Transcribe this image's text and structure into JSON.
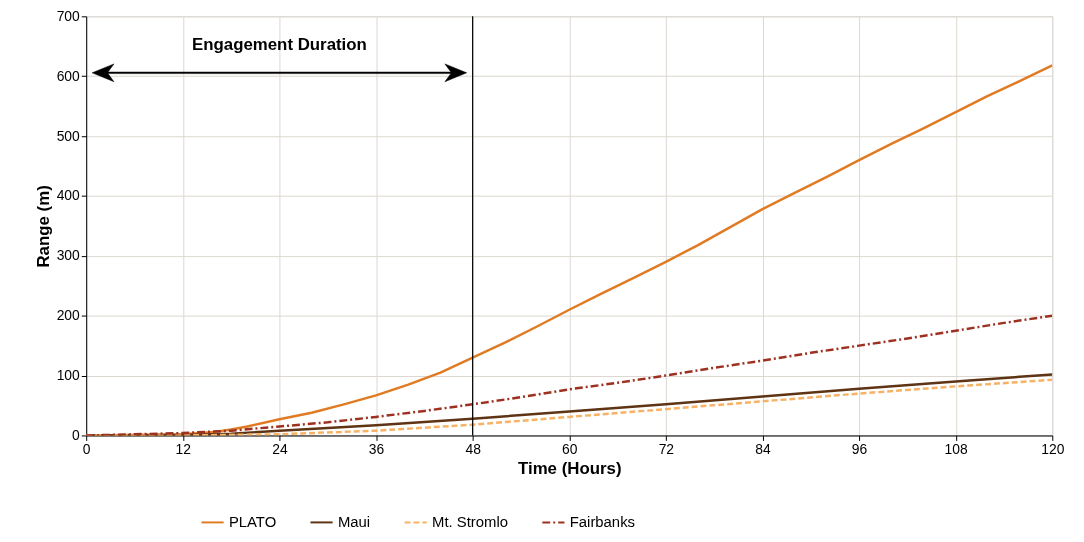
{
  "chart_data": {
    "type": "line",
    "xlabel": "Time (Hours)",
    "ylabel": "Range (m)",
    "xlim": [
      0,
      120
    ],
    "xticks": [
      0,
      12,
      24,
      36,
      48,
      60,
      72,
      84,
      96,
      108,
      120
    ],
    "ylim": [
      0,
      700
    ],
    "yticks": [
      0,
      100,
      200,
      300,
      400,
      500,
      600,
      700
    ],
    "grid": true,
    "legend": "bottom",
    "series": [
      {
        "name": "PLATO",
        "color": "#e07b24",
        "line_style": "solid",
        "x": [
          0,
          12,
          16,
          18,
          20,
          24,
          28,
          32,
          36,
          40,
          44,
          48,
          52,
          56,
          60,
          64,
          68,
          72,
          76,
          80,
          84,
          88,
          92,
          96,
          100,
          104,
          108,
          112,
          116,
          120
        ],
        "values": [
          0,
          2,
          6,
          10,
          15,
          27,
          38,
          52,
          67,
          85,
          105,
          130,
          155,
          182,
          210,
          237,
          263,
          290,
          318,
          348,
          378,
          405,
          432,
          460,
          487,
          513,
          540,
          567,
          592,
          618
        ]
      },
      {
        "name": "Maui",
        "color": "#5e3415",
        "line_style": "solid",
        "x": [
          0,
          12,
          18,
          24,
          36,
          48,
          60,
          72,
          84,
          96,
          108,
          120
        ],
        "values": [
          0,
          1,
          3,
          8,
          17,
          28,
          40,
          52,
          65,
          78,
          90,
          102
        ]
      },
      {
        "name": "Mt. Stromlo",
        "color": "#f7b266",
        "line_style": "dashed",
        "x": [
          0,
          12,
          24,
          36,
          48,
          60,
          72,
          84,
          96,
          108,
          120
        ],
        "values": [
          0,
          0,
          2,
          8,
          18,
          31,
          44,
          57,
          70,
          82,
          93
        ]
      },
      {
        "name": "Fairbanks",
        "color": "#9e3020",
        "line_style": "dashdot",
        "x": [
          0,
          12,
          18,
          24,
          30,
          36,
          42,
          48,
          54,
          60,
          66,
          72,
          78,
          84,
          90,
          96,
          102,
          108,
          114,
          120
        ],
        "values": [
          0,
          4,
          8,
          15,
          22,
          31,
          41,
          52,
          64,
          77,
          88,
          100,
          113,
          125,
          138,
          150,
          162,
          175,
          188,
          200
        ]
      }
    ],
    "ref_lines": [
      {
        "axis": "x",
        "value": 48,
        "color": "#000000"
      }
    ],
    "annotations": [
      "Engagement Duration"
    ]
  }
}
